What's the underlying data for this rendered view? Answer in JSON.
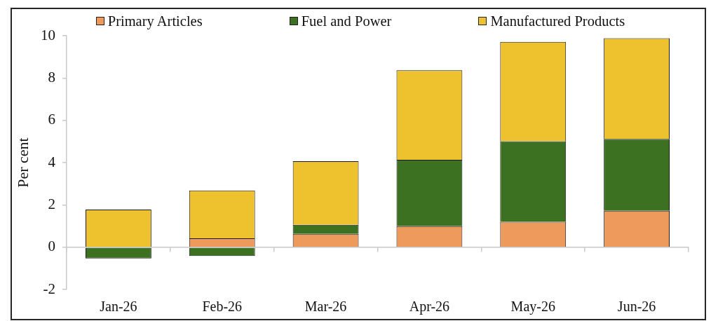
{
  "chart_data": {
    "type": "bar",
    "stacked": true,
    "ylabel": "Per cent",
    "legend": "top",
    "categories": [
      "Jan-26",
      "Feb-26",
      "Mar-26",
      "Apr-26",
      "May-26",
      "Jun-26"
    ],
    "series": [
      {
        "name": "Primary Articles",
        "color": "#ee9a5d",
        "values": [
          0,
          0.42,
          0.63,
          0.99,
          1.2,
          1.72
        ]
      },
      {
        "name": "Fuel and Power",
        "color": "#3c7122",
        "values": [
          -0.53,
          -0.42,
          0.43,
          3.14,
          3.81,
          3.4
        ]
      },
      {
        "name": "Manufactured Products",
        "color": "#eec12f",
        "values": [
          1.78,
          2.26,
          3.01,
          4.24,
          4.7,
          4.76
        ]
      }
    ],
    "ylim": [
      -2,
      10
    ],
    "yticks": [
      -2,
      0,
      2,
      4,
      6,
      8,
      10
    ]
  }
}
